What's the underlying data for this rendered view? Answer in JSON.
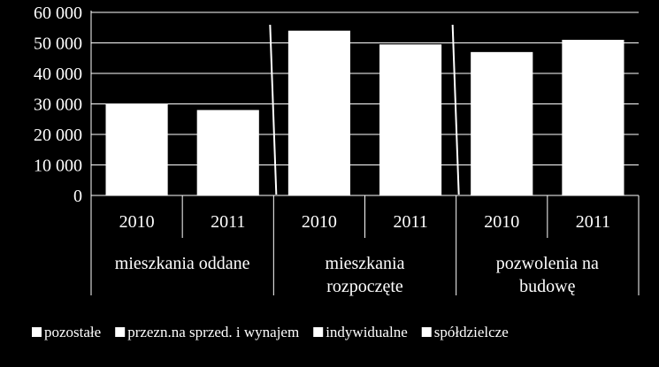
{
  "chart_data": {
    "type": "bar",
    "ylim": [
      0,
      60000
    ],
    "yticks": [
      0,
      10000,
      20000,
      30000,
      40000,
      50000,
      60000
    ],
    "ytick_labels": [
      "0",
      "10 000",
      "20 000",
      "30 000",
      "40 000",
      "50 000",
      "60 000"
    ],
    "groups": [
      {
        "label": [
          "mieszkania oddane"
        ],
        "categories": [
          "2010",
          "2011"
        ]
      },
      {
        "label": [
          "mieszkania",
          "rozpoczęte"
        ],
        "categories": [
          "2010",
          "2011"
        ]
      },
      {
        "label": [
          "pozwolenia na",
          "budowę"
        ],
        "categories": [
          "2010",
          "2011"
        ]
      }
    ],
    "series": [
      {
        "name": "pozostałe",
        "values": [
          0,
          0,
          0,
          0,
          0,
          0
        ]
      },
      {
        "name": "przezn.na sprzed. i wynajem",
        "values": [
          0,
          0,
          0,
          0,
          0,
          0
        ]
      },
      {
        "name": "indywidualne",
        "values": [
          0,
          0,
          0,
          0,
          0,
          0
        ]
      },
      {
        "name": "spółdzielcze",
        "values": [
          0,
          0,
          0,
          0,
          0,
          0
        ]
      }
    ],
    "totals": [
      30000,
      28000,
      54000,
      49500,
      47000,
      51000
    ],
    "grid": true,
    "legend_position": "bottom",
    "colors": {
      "background": "#000000",
      "bar": "#ffffff",
      "text": "#ffffff",
      "grid": "#ffffff"
    }
  }
}
